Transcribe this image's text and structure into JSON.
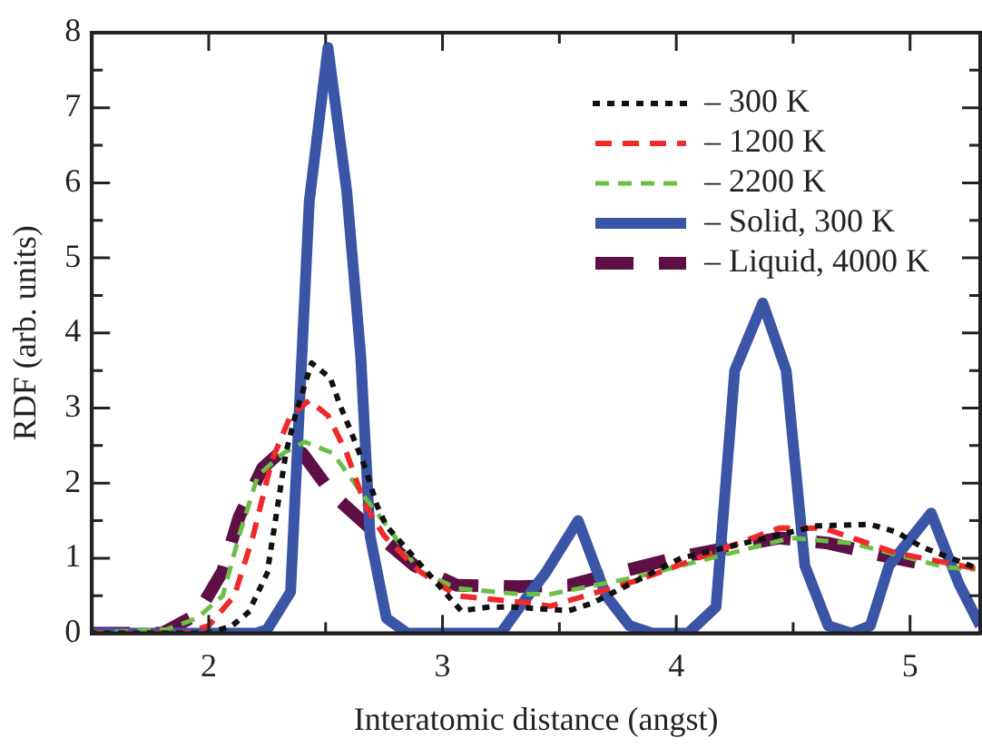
{
  "chart_data": {
    "type": "line",
    "xlabel": "Interatomic distance (angst)",
    "ylabel": "RDF (arb. units)",
    "xlim": [
      1.5,
      5.3
    ],
    "ylim": [
      0,
      8
    ],
    "xticks": [
      {
        "value": 1.5,
        "label": null
      },
      2,
      {
        "value": 2.5,
        "label": null
      },
      3,
      {
        "value": 3.5,
        "label": null
      },
      4,
      {
        "value": 4.5,
        "label": null
      },
      5
    ],
    "yticks": [
      0,
      {
        "value": 0.5,
        "label": null
      },
      1,
      {
        "value": 1.5,
        "label": null
      },
      2,
      {
        "value": 2.5,
        "label": null
      },
      3,
      {
        "value": 3.5,
        "label": null
      },
      4,
      {
        "value": 4.5,
        "label": null
      },
      5,
      {
        "value": 5.5,
        "label": null
      },
      6,
      {
        "value": 6.5,
        "label": null
      },
      7,
      {
        "value": 7.5,
        "label": null
      },
      8
    ],
    "grid": false,
    "legend": "top right",
    "marker": "none",
    "series": [
      {
        "name": "– 300 K",
        "color": "#111111",
        "line_style": "dotted",
        "x": [
          1.5,
          2.0,
          2.1,
          2.17,
          2.25,
          2.29,
          2.33,
          2.37,
          2.44,
          2.52,
          2.56,
          2.6,
          2.67,
          2.72,
          2.76,
          3.08,
          3.2,
          3.3,
          3.54,
          3.64,
          4.02,
          4.6,
          4.83,
          4.94,
          5.05,
          5.3
        ],
        "values": [
          0,
          0,
          0.1,
          0.28,
          0.8,
          1.6,
          2.4,
          2.9,
          3.6,
          3.4,
          3.05,
          2.75,
          2.2,
          1.7,
          1.43,
          0.3,
          0.35,
          0.35,
          0.3,
          0.4,
          1.0,
          1.43,
          1.45,
          1.35,
          1.15,
          0.85
        ]
      },
      {
        "name": "– 1200 K",
        "color": "#ee2a2a",
        "line_style": "dashed",
        "x": [
          1.5,
          1.9,
          2.0,
          2.11,
          2.19,
          2.27,
          2.35,
          2.43,
          2.51,
          2.59,
          2.67,
          2.75,
          2.9,
          3.06,
          3.38,
          3.46,
          3.83,
          4.44,
          4.63,
          4.94,
          5.3
        ],
        "values": [
          0,
          0,
          0.1,
          0.5,
          1.3,
          2.3,
          2.9,
          3.1,
          2.9,
          2.4,
          1.7,
          1.3,
          0.83,
          0.5,
          0.4,
          0.36,
          0.7,
          1.4,
          1.4,
          1.07,
          0.85
        ]
      },
      {
        "name": "– 2200 K",
        "color": "#6cbf45",
        "line_style": "dashed",
        "x": [
          1.5,
          1.82,
          1.95,
          2.06,
          2.13,
          2.21,
          2.32,
          2.41,
          2.53,
          2.67,
          2.77,
          2.9,
          3.06,
          3.33,
          3.46,
          3.83,
          4.49,
          4.75,
          5.15,
          5.28
        ],
        "values": [
          0,
          0.05,
          0.2,
          0.5,
          1.3,
          2.1,
          2.4,
          2.55,
          2.4,
          1.8,
          1.4,
          0.83,
          0.6,
          0.52,
          0.52,
          0.75,
          1.27,
          1.2,
          0.88,
          0.85
        ]
      },
      {
        "name": "– Solid, 300 K",
        "color": "#3a55a6",
        "line_style": "solid",
        "x": [
          1.5,
          2.2,
          2.25,
          2.35,
          2.43,
          2.51,
          2.59,
          2.65,
          2.69,
          2.76,
          2.85,
          3.25,
          3.33,
          3.44,
          3.58,
          3.7,
          3.8,
          3.9,
          4.05,
          4.17,
          4.25,
          4.37,
          4.47,
          4.55,
          4.65,
          4.75,
          4.83,
          4.91,
          5.09,
          5.21,
          5.3
        ],
        "values": [
          0,
          0,
          0.05,
          0.55,
          5.75,
          7.8,
          5.9,
          3.7,
          1.3,
          0.2,
          0,
          0,
          0.35,
          0.8,
          1.5,
          0.5,
          0.1,
          0,
          0,
          0.35,
          3.5,
          4.4,
          3.5,
          0.9,
          0.1,
          0,
          0.1,
          0.9,
          1.6,
          0.65,
          0.1
        ]
      },
      {
        "name": "– Liquid, 4000 K",
        "color": "#5e0f45",
        "line_style": "dashed",
        "x": [
          1.5,
          1.8,
          1.95,
          2.06,
          2.13,
          2.23,
          2.32,
          2.4,
          2.53,
          2.69,
          2.88,
          3.06,
          3.33,
          3.54,
          3.99,
          4.44,
          4.65,
          4.89,
          5.13
        ],
        "values": [
          0,
          0,
          0.25,
          0.83,
          1.55,
          2.2,
          2.45,
          2.4,
          1.85,
          1.4,
          0.9,
          0.64,
          0.62,
          0.64,
          1.0,
          1.27,
          1.2,
          1.03,
          0.88
        ]
      }
    ]
  }
}
